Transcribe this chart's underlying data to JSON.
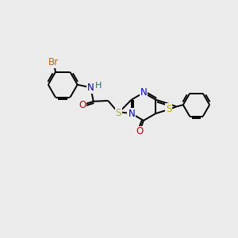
{
  "bg_color": "#ebebeb",
  "bond_color": "#000000",
  "bond_width": 1.4,
  "atoms": {
    "Br": {
      "color": "#cc6600",
      "fontsize": 8.5
    },
    "N": {
      "color": "#0000cc",
      "fontsize": 8.5
    },
    "O": {
      "color": "#cc0000",
      "fontsize": 8.5
    },
    "S": {
      "color": "#bbaa00",
      "fontsize": 8.5
    },
    "H": {
      "color": "#336666",
      "fontsize": 8.0
    }
  },
  "figsize": [
    3.0,
    3.0
  ],
  "dpi": 100
}
